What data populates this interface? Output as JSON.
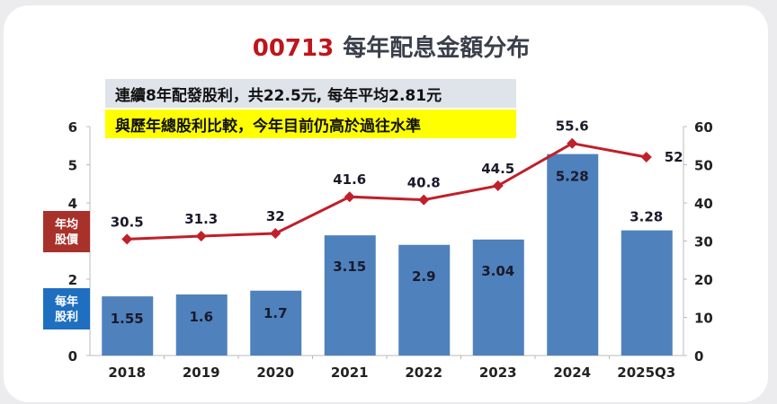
{
  "chart_data": {
    "type": "bar",
    "title_code": "00713",
    "title": "每年配息金額分布",
    "notes": [
      "連續8年配發股利，共22.5元, 每年平均2.81元",
      "與歷年總股利比較，今年目前仍高於過往水準"
    ],
    "categories": [
      "2018",
      "2019",
      "2020",
      "2021",
      "2022",
      "2023",
      "2024",
      "2025Q3"
    ],
    "series": [
      {
        "name": "每年股利",
        "type": "bar",
        "axis": "left",
        "color": "#4f81bd",
        "values": [
          1.55,
          1.6,
          1.7,
          3.15,
          2.9,
          3.04,
          5.28,
          3.28
        ]
      },
      {
        "name": "年均股價",
        "type": "line",
        "axis": "right",
        "color": "#c0202a",
        "values": [
          30.5,
          31.3,
          32,
          41.6,
          40.8,
          44.5,
          55.6,
          52
        ]
      }
    ],
    "left_axis": {
      "ylim": [
        0,
        6
      ],
      "ticks": [
        "0",
        "2",
        "4",
        "5",
        "6"
      ]
    },
    "right_axis": {
      "ylim": [
        0,
        60
      ],
      "ticks": [
        "0",
        "10",
        "20",
        "30",
        "40",
        "50",
        "60"
      ]
    },
    "legend_labels": {
      "price": "年均\n股價",
      "dividend": "每年\n股利"
    },
    "colors": {
      "title_code": "#c0141c",
      "title": "#3a3f4a",
      "note1_bg": "#dfe3ea",
      "note2_bg": "#ffff00",
      "price_label_bg": "#a8312a",
      "dividend_label_bg": "#1f6fc0"
    },
    "grid": false
  }
}
